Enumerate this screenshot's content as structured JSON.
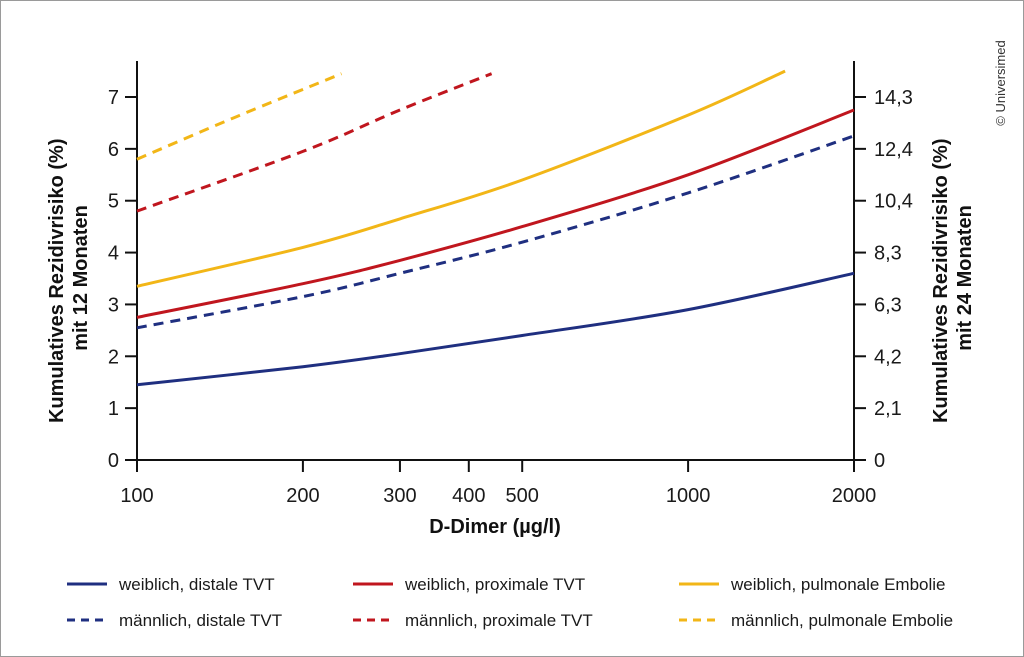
{
  "chart_data": {
    "type": "line",
    "xlabel": "D-Dimer (µg/l)",
    "ylabel_left": [
      "Kumulatives Rezidivrisiko (%)",
      "mit 12 Monaten"
    ],
    "ylabel_right": [
      "Kumulatives Rezidivrisiko (%)",
      "mit 24 Monaten"
    ],
    "x_scale": "log",
    "xlim": [
      100,
      2000
    ],
    "ylim": [
      0,
      7
    ],
    "x_ticks": [
      100,
      200,
      300,
      400,
      500,
      1000,
      2000
    ],
    "x_tick_labels": [
      "100",
      "200",
      "300",
      "400",
      "500",
      "1000",
      "2000"
    ],
    "y_left_ticks": [
      0,
      1,
      2,
      3,
      4,
      5,
      6,
      7
    ],
    "y_left_tick_labels": [
      "0",
      "1",
      "2",
      "3",
      "4",
      "5",
      "6",
      "7"
    ],
    "y_right_ticks": [
      0,
      1,
      2,
      3,
      4,
      5,
      6,
      7
    ],
    "y_right_tick_labels": [
      "0",
      "2,1",
      "4,2",
      "6,3",
      "8,3",
      "10,4",
      "12,4",
      "14,3"
    ],
    "grid": false,
    "legend_position": "bottom",
    "series": [
      {
        "name": "weiblich, distale TVT",
        "color": "#1f2f80",
        "dash": "solid",
        "x": [
          100,
          200,
          300,
          500,
          1000,
          2000
        ],
        "y": [
          1.45,
          1.8,
          2.05,
          2.4,
          2.9,
          3.6
        ]
      },
      {
        "name": "weiblich, proximale TVT",
        "color": "#c0161e",
        "dash": "solid",
        "x": [
          100,
          200,
          300,
          500,
          1000,
          2000
        ],
        "y": [
          2.75,
          3.4,
          3.85,
          4.5,
          5.5,
          6.75
        ]
      },
      {
        "name": "weiblich, pulmonale Embolie",
        "color": "#f2b617",
        "dash": "solid",
        "x": [
          100,
          200,
          300,
          500,
          1000,
          1500
        ],
        "y": [
          3.35,
          4.1,
          4.65,
          5.4,
          6.65,
          7.5
        ]
      },
      {
        "name": "männlich, distale TVT",
        "color": "#1f2f80",
        "dash": "dashed",
        "x": [
          100,
          200,
          300,
          500,
          1000,
          2000
        ],
        "y": [
          2.55,
          3.15,
          3.6,
          4.2,
          5.15,
          6.25
        ]
      },
      {
        "name": "männlich, proximale TVT",
        "color": "#c0161e",
        "dash": "dashed",
        "x": [
          100,
          200,
          300,
          440
        ],
        "y": [
          4.8,
          5.95,
          6.75,
          7.45
        ]
      },
      {
        "name": "männlich, pulmonale Embolie",
        "color": "#f2b617",
        "dash": "dashed",
        "x": [
          100,
          150,
          235
        ],
        "y": [
          5.8,
          6.6,
          7.45
        ]
      }
    ]
  },
  "legend": [
    {
      "label": "weiblich, distale TVT",
      "color": "#1f2f80",
      "dash": "solid"
    },
    {
      "label": "weiblich, proximale TVT",
      "color": "#c0161e",
      "dash": "solid"
    },
    {
      "label": "weiblich, pulmonale Embolie",
      "color": "#f2b617",
      "dash": "solid"
    },
    {
      "label": "männlich, distale TVT",
      "color": "#1f2f80",
      "dash": "dashed"
    },
    {
      "label": "männlich, proximale TVT",
      "color": "#c0161e",
      "dash": "dashed"
    },
    {
      "label": "männlich, pulmonale Embolie",
      "color": "#f2b617",
      "dash": "dashed"
    }
  ],
  "copyright": "© Universimed"
}
